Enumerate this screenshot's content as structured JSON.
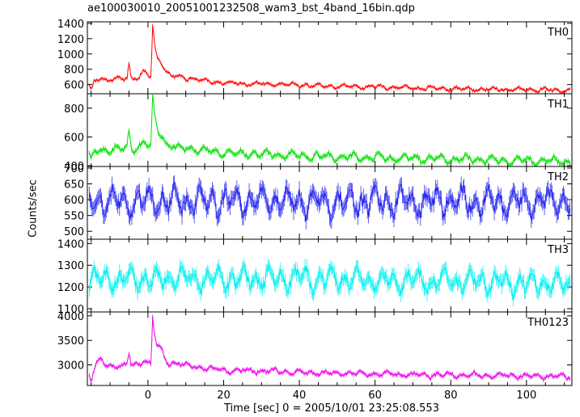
{
  "chart_data": {
    "type": "line",
    "title": "ae100030010_20051001232508_wam3_bst_4band_16bin.qdp",
    "xlabel": "Time [sec] 0 = 2005/10/01 23:25:08.553",
    "ylabel": "Counts/sec",
    "xlim": [
      -16,
      112
    ],
    "x_ticks": [
      0,
      20,
      40,
      60,
      80,
      100
    ],
    "bin_seconds": 0.25,
    "grid": false,
    "panels": [
      {
        "name": "TH0",
        "color": "#ff0000",
        "ylim": [
          480,
          1420
        ],
        "y_ticks": [
          600,
          800,
          1000,
          1200,
          1400
        ],
        "baseline": 560,
        "noise": 14,
        "osc_amp": 28,
        "features": [
          {
            "t": -15,
            "v": 520,
            "shape": "start"
          },
          {
            "t": -12.5,
            "v": 690,
            "shape": "bump"
          },
          {
            "t": -5,
            "v": 870,
            "shape": "spike"
          },
          {
            "t": -1,
            "v": 760,
            "shape": "bump"
          },
          {
            "t": 1.2,
            "v": 1400,
            "shape": "peak"
          },
          {
            "t": 3.5,
            "v": 810,
            "shape": "bump"
          },
          {
            "t": 8,
            "v": 700,
            "shape": "bump"
          }
        ],
        "trend": [
          [
            -16,
            640
          ],
          [
            5,
            720
          ],
          [
            20,
            620
          ],
          [
            50,
            580
          ],
          [
            80,
            545
          ],
          [
            112,
            525
          ]
        ]
      },
      {
        "name": "TH1",
        "color": "#00e000",
        "ylim": [
          395,
          900
        ],
        "y_ticks": [
          400,
          600,
          800
        ],
        "baseline": 450,
        "noise": 12,
        "osc_amp": 30,
        "features": [
          {
            "t": -15,
            "v": 440,
            "shape": "start"
          },
          {
            "t": -5,
            "v": 640,
            "shape": "spike"
          },
          {
            "t": -1,
            "v": 560,
            "shape": "bump"
          },
          {
            "t": 1.2,
            "v": 890,
            "shape": "peak"
          },
          {
            "t": 3.5,
            "v": 580,
            "shape": "bump"
          },
          {
            "t": 8,
            "v": 510,
            "shape": "bump"
          }
        ],
        "trend": [
          [
            -16,
            500
          ],
          [
            5,
            540
          ],
          [
            20,
            490
          ],
          [
            50,
            460
          ],
          [
            80,
            445
          ],
          [
            112,
            430
          ]
        ]
      },
      {
        "name": "TH2",
        "color": "#2222ee",
        "ylim": [
          475,
          705
        ],
        "y_ticks": [
          500,
          550,
          600,
          650,
          700
        ],
        "baseline": 595,
        "noise": 18,
        "osc_amp": 45,
        "features": [],
        "trend": [
          [
            -16,
            595
          ],
          [
            112,
            595
          ]
        ]
      },
      {
        "name": "TH3",
        "color": "#00f0f0",
        "ylim": [
          1085,
          1420
        ],
        "y_ticks": [
          1100,
          1200,
          1300,
          1400
        ],
        "baseline": 1225,
        "noise": 22,
        "osc_amp": 55,
        "features": [],
        "trend": [
          [
            -16,
            1235
          ],
          [
            40,
            1240
          ],
          [
            112,
            1215
          ]
        ]
      },
      {
        "name": "TH0123",
        "color": "#ee00ee",
        "ylim": [
          2580,
          4080
        ],
        "y_ticks": [
          3000,
          3500,
          4000
        ],
        "baseline": 2860,
        "noise": 28,
        "osc_amp": 55,
        "features": [
          {
            "t": -15,
            "v": 2700,
            "shape": "start"
          },
          {
            "t": -12.5,
            "v": 3080,
            "shape": "bump"
          },
          {
            "t": -5,
            "v": 3250,
            "shape": "spike"
          },
          {
            "t": -1,
            "v": 3120,
            "shape": "bump"
          },
          {
            "t": 1.2,
            "v": 4030,
            "shape": "peak"
          },
          {
            "t": 3.5,
            "v": 3180,
            "shape": "bump"
          },
          {
            "t": 8,
            "v": 3040,
            "shape": "bump"
          }
        ],
        "trend": [
          [
            -16,
            2960
          ],
          [
            5,
            3020
          ],
          [
            20,
            2900
          ],
          [
            50,
            2830
          ],
          [
            80,
            2790
          ],
          [
            112,
            2760
          ]
        ]
      }
    ]
  }
}
